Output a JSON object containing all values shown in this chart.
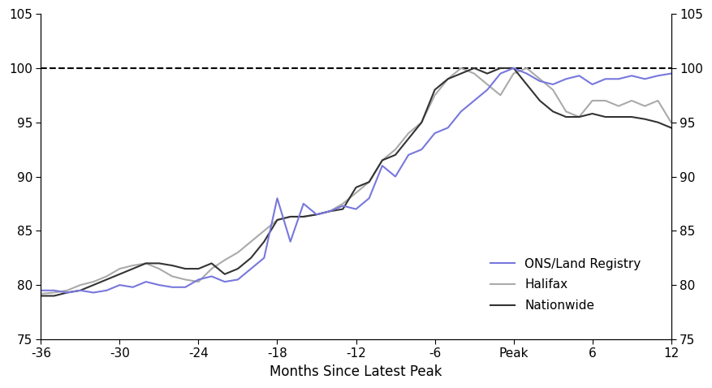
{
  "xlabel": "Months Since Latest Peak",
  "ylim": [
    75,
    105
  ],
  "xlim": [
    -36,
    12
  ],
  "xticks": [
    -36,
    -30,
    -24,
    -18,
    -12,
    -6,
    0,
    6,
    12
  ],
  "xtick_labels": [
    "-36",
    "-30",
    "-24",
    "-18",
    "-12",
    "-6",
    "Peak",
    "6",
    "12"
  ],
  "yticks": [
    75,
    80,
    85,
    90,
    95,
    100,
    105
  ],
  "dashed_line_y": 100,
  "ons_color": "#7777dd",
  "halifax_color": "#aaaaaa",
  "nationwide_color": "#333333",
  "legend_labels": [
    "ONS/Land Registry",
    "Halifax",
    "Nationwide"
  ],
  "background_color": "#ffffff",
  "ons_x": [
    -36,
    -35,
    -34,
    -33,
    -32,
    -31,
    -30,
    -29,
    -28,
    -27,
    -26,
    -25,
    -24,
    -23,
    -22,
    -21,
    -20,
    -19,
    -18,
    -17,
    -16,
    -15,
    -14,
    -13,
    -12,
    -11,
    -10,
    -9,
    -8,
    -7,
    -6,
    -5,
    -4,
    -3,
    -2,
    -1,
    0,
    1,
    2,
    3,
    4,
    5,
    6,
    7,
    8,
    9,
    10,
    11,
    12
  ],
  "ons_y": [
    79.5,
    79.5,
    79.3,
    79.5,
    79.3,
    79.5,
    80.0,
    79.8,
    80.3,
    80.0,
    79.8,
    79.8,
    80.5,
    80.8,
    80.3,
    80.5,
    81.5,
    82.5,
    88.0,
    84.0,
    87.5,
    86.5,
    86.8,
    87.3,
    87.0,
    88.0,
    91.0,
    90.0,
    92.0,
    92.5,
    94.0,
    94.5,
    96.0,
    97.0,
    98.0,
    99.5,
    100.0,
    99.5,
    98.8,
    98.5,
    99.0,
    99.3,
    98.5,
    99.0,
    99.0,
    99.3,
    99.0,
    99.3,
    99.5
  ],
  "halifax_x": [
    -36,
    -35,
    -34,
    -33,
    -32,
    -31,
    -30,
    -29,
    -28,
    -27,
    -26,
    -25,
    -24,
    -23,
    -22,
    -21,
    -20,
    -19,
    -18,
    -17,
    -16,
    -15,
    -14,
    -13,
    -12,
    -11,
    -10,
    -9,
    -8,
    -7,
    -6,
    -5,
    -4,
    -3,
    -2,
    -1,
    0,
    1,
    2,
    3,
    4,
    5,
    6,
    7,
    8,
    9,
    10,
    11,
    12
  ],
  "halifax_y": [
    79.2,
    79.3,
    79.5,
    80.0,
    80.3,
    80.8,
    81.5,
    81.8,
    82.0,
    81.5,
    80.8,
    80.5,
    80.3,
    81.5,
    82.3,
    83.0,
    84.0,
    85.0,
    86.0,
    86.3,
    86.3,
    86.5,
    86.8,
    87.5,
    88.5,
    89.5,
    91.5,
    92.5,
    94.0,
    95.0,
    97.5,
    99.0,
    100.0,
    99.5,
    98.5,
    97.5,
    99.5,
    100.0,
    99.0,
    98.0,
    96.0,
    95.5,
    97.0,
    97.0,
    96.5,
    97.0,
    96.5,
    97.0,
    95.0
  ],
  "nationwide_x": [
    -36,
    -35,
    -34,
    -33,
    -32,
    -31,
    -30,
    -29,
    -28,
    -27,
    -26,
    -25,
    -24,
    -23,
    -22,
    -21,
    -20,
    -19,
    -18,
    -17,
    -16,
    -15,
    -14,
    -13,
    -12,
    -11,
    -10,
    -9,
    -8,
    -7,
    -6,
    -5,
    -4,
    -3,
    -2,
    -1,
    0,
    1,
    2,
    3,
    4,
    5,
    6,
    7,
    8,
    9,
    10,
    11,
    12
  ],
  "nationwide_y": [
    79.0,
    79.0,
    79.3,
    79.5,
    80.0,
    80.5,
    81.0,
    81.5,
    82.0,
    82.0,
    81.8,
    81.5,
    81.5,
    82.0,
    81.0,
    81.5,
    82.5,
    84.0,
    86.0,
    86.3,
    86.3,
    86.5,
    86.8,
    87.0,
    89.0,
    89.5,
    91.5,
    92.0,
    93.5,
    95.0,
    98.0,
    99.0,
    99.5,
    100.0,
    99.5,
    100.0,
    100.0,
    98.5,
    97.0,
    96.0,
    95.5,
    95.5,
    95.8,
    95.5,
    95.5,
    95.5,
    95.3,
    95.0,
    94.5
  ]
}
